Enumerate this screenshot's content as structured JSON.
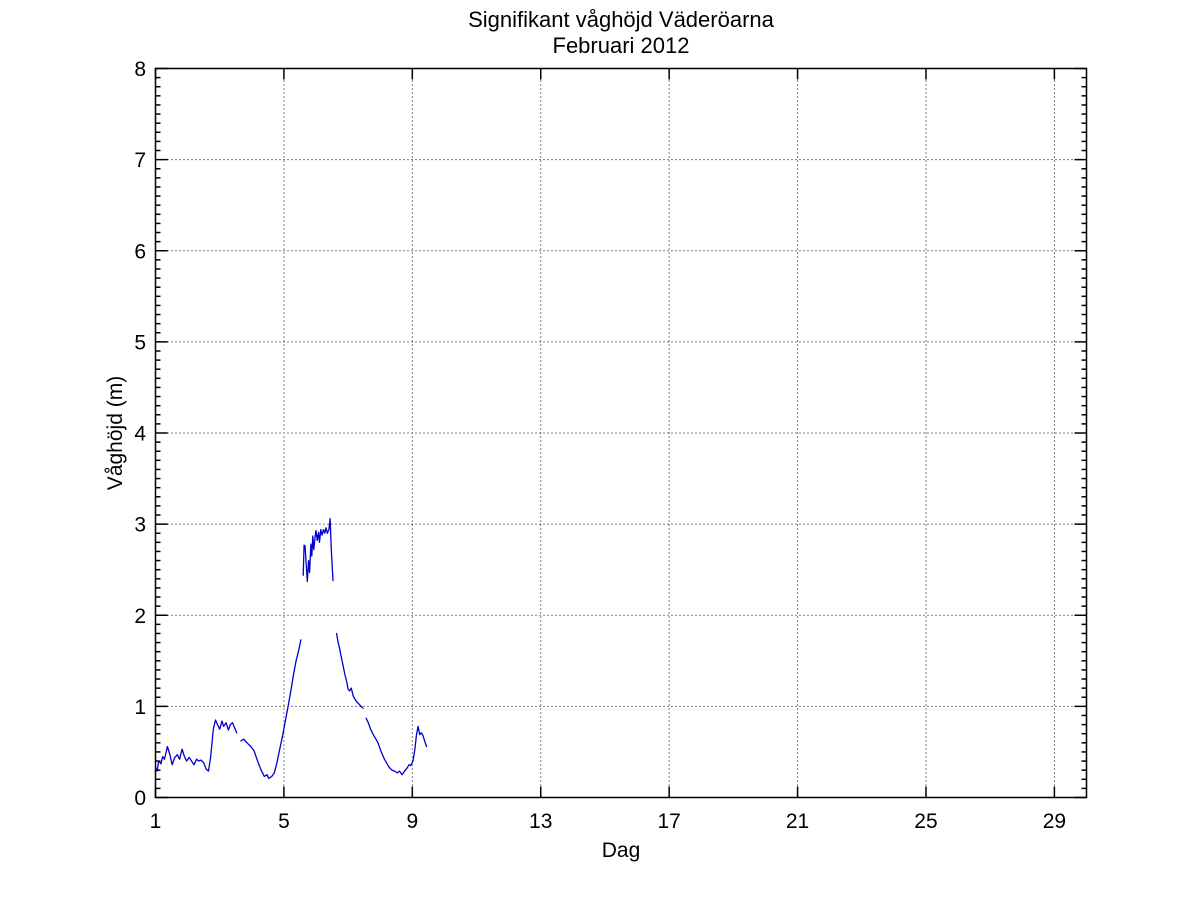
{
  "figure": {
    "background": "#ffffff",
    "title_line1": "Signifikant våghöjd Väderöarna",
    "title_line2": "Februari 2012"
  },
  "chart_data": {
    "type": "line",
    "title": "Signifikant våghöjd Väderöarna",
    "subtitle": "Februari 2012",
    "xlabel": "Dag",
    "ylabel": "Våghöjd (m)",
    "xlim": [
      1,
      30
    ],
    "ylim": [
      0,
      8
    ],
    "xticks": [
      1,
      5,
      9,
      13,
      17,
      21,
      25,
      29
    ],
    "yticks": [
      0,
      1,
      2,
      3,
      4,
      5,
      6,
      7,
      8
    ],
    "y_minor_step": 0.1,
    "grid": "dotted",
    "grid_color": "#000000",
    "axis_color": "#000000",
    "legend": "none",
    "series": [
      {
        "name": "Signifikant våghöjd",
        "color": "#0000CC",
        "segments": [
          [
            [
              1.0,
              0.33
            ],
            [
              1.05,
              0.29
            ],
            [
              1.1,
              0.4
            ],
            [
              1.17,
              0.37
            ],
            [
              1.22,
              0.45
            ],
            [
              1.28,
              0.42
            ],
            [
              1.37,
              0.56
            ],
            [
              1.45,
              0.47
            ],
            [
              1.52,
              0.36
            ],
            [
              1.6,
              0.44
            ],
            [
              1.68,
              0.47
            ],
            [
              1.75,
              0.42
            ],
            [
              1.83,
              0.53
            ],
            [
              1.9,
              0.45
            ],
            [
              1.97,
              0.4
            ],
            [
              2.05,
              0.44
            ],
            [
              2.12,
              0.4
            ],
            [
              2.2,
              0.36
            ],
            [
              2.28,
              0.42
            ],
            [
              2.35,
              0.4
            ],
            [
              2.42,
              0.41
            ],
            [
              2.5,
              0.38
            ],
            [
              2.58,
              0.31
            ],
            [
              2.65,
              0.29
            ],
            [
              2.72,
              0.45
            ],
            [
              2.8,
              0.75
            ],
            [
              2.87,
              0.85
            ],
            [
              2.93,
              0.8
            ],
            [
              3.0,
              0.75
            ],
            [
              3.07,
              0.84
            ],
            [
              3.12,
              0.78
            ],
            [
              3.2,
              0.82
            ],
            [
              3.27,
              0.74
            ],
            [
              3.33,
              0.8
            ],
            [
              3.4,
              0.82
            ],
            [
              3.47,
              0.76
            ],
            [
              3.53,
              0.71
            ]
          ],
          [
            [
              3.66,
              0.62
            ],
            [
              3.75,
              0.64
            ],
            [
              3.85,
              0.6
            ],
            [
              3.97,
              0.56
            ],
            [
              4.07,
              0.51
            ],
            [
              4.18,
              0.4
            ],
            [
              4.28,
              0.31
            ],
            [
              4.39,
              0.23
            ],
            [
              4.47,
              0.25
            ],
            [
              4.53,
              0.21
            ],
            [
              4.62,
              0.23
            ],
            [
              4.7,
              0.27
            ],
            [
              4.78,
              0.38
            ],
            [
              4.88,
              0.55
            ],
            [
              4.97,
              0.7
            ],
            [
              5.05,
              0.85
            ],
            [
              5.13,
              1.0
            ],
            [
              5.22,
              1.18
            ],
            [
              5.3,
              1.35
            ],
            [
              5.38,
              1.5
            ],
            [
              5.47,
              1.63
            ],
            [
              5.53,
              1.73
            ]
          ],
          [
            [
              5.6,
              2.44
            ],
            [
              5.63,
              2.77
            ],
            [
              5.66,
              2.76
            ],
            [
              5.69,
              2.58
            ],
            [
              5.73,
              2.37
            ],
            [
              5.77,
              2.6
            ],
            [
              5.8,
              2.47
            ],
            [
              5.84,
              2.78
            ],
            [
              5.87,
              2.65
            ],
            [
              5.9,
              2.87
            ],
            [
              5.93,
              2.72
            ],
            [
              5.97,
              2.86
            ],
            [
              6.0,
              2.93
            ],
            [
              6.04,
              2.82
            ],
            [
              6.08,
              2.91
            ],
            [
              6.11,
              2.8
            ],
            [
              6.15,
              2.94
            ],
            [
              6.19,
              2.88
            ],
            [
              6.23,
              2.94
            ],
            [
              6.27,
              2.9
            ],
            [
              6.31,
              2.96
            ],
            [
              6.35,
              2.9
            ],
            [
              6.4,
              2.94
            ],
            [
              6.44,
              3.06
            ],
            [
              6.48,
              2.7
            ],
            [
              6.53,
              2.38
            ]
          ],
          [
            [
              6.64,
              1.8
            ],
            [
              6.68,
              1.72
            ],
            [
              6.73,
              1.64
            ],
            [
              6.78,
              1.55
            ],
            [
              6.84,
              1.45
            ],
            [
              6.9,
              1.35
            ],
            [
              6.95,
              1.28
            ],
            [
              7.0,
              1.19
            ],
            [
              7.05,
              1.17
            ],
            [
              7.1,
              1.2
            ],
            [
              7.16,
              1.11
            ],
            [
              7.25,
              1.06
            ],
            [
              7.35,
              1.02
            ],
            [
              7.46,
              0.98
            ]
          ],
          [
            [
              7.56,
              0.87
            ],
            [
              7.63,
              0.82
            ],
            [
              7.7,
              0.75
            ],
            [
              7.78,
              0.69
            ],
            [
              7.85,
              0.65
            ],
            [
              7.93,
              0.6
            ],
            [
              8.0,
              0.53
            ],
            [
              8.08,
              0.46
            ],
            [
              8.13,
              0.42
            ],
            [
              8.2,
              0.38
            ],
            [
              8.28,
              0.33
            ],
            [
              8.37,
              0.3
            ],
            [
              8.45,
              0.29
            ],
            [
              8.53,
              0.27
            ],
            [
              8.6,
              0.29
            ],
            [
              8.68,
              0.25
            ],
            [
              8.76,
              0.29
            ],
            [
              8.83,
              0.32
            ],
            [
              8.9,
              0.36
            ],
            [
              8.95,
              0.35
            ],
            [
              9.02,
              0.4
            ],
            [
              9.08,
              0.53
            ],
            [
              9.13,
              0.69
            ],
            [
              9.18,
              0.78
            ],
            [
              9.23,
              0.69
            ],
            [
              9.28,
              0.71
            ],
            [
              9.33,
              0.68
            ],
            [
              9.44,
              0.56
            ]
          ]
        ]
      }
    ]
  }
}
